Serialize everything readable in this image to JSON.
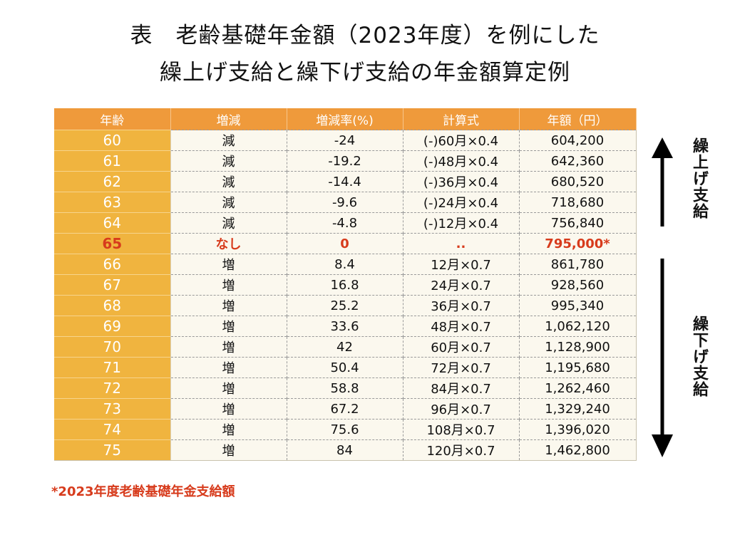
{
  "title": {
    "line1": "表　老齢基礎年金額（2023年度）を例にした",
    "line2": "繰上げ支給と繰下げ支給の年金額算定例"
  },
  "table": {
    "headers": [
      "年齢",
      "増減",
      "増減率(%)",
      "計算式",
      "年額（円）"
    ],
    "rows": [
      {
        "age": "60",
        "change": "減",
        "rate": "-24",
        "formula": "(-)60月×0.4",
        "amount": "604,200"
      },
      {
        "age": "61",
        "change": "減",
        "rate": "-19.2",
        "formula": "(-)48月×0.4",
        "amount": "642,360"
      },
      {
        "age": "62",
        "change": "減",
        "rate": "-14.4",
        "formula": "(-)36月×0.4",
        "amount": "680,520"
      },
      {
        "age": "63",
        "change": "減",
        "rate": "-9.6",
        "formula": "(-)24月×0.4",
        "amount": "718,680"
      },
      {
        "age": "64",
        "change": "減",
        "rate": "-4.8",
        "formula": "(-)12月×0.4",
        "amount": "756,840"
      },
      {
        "age": "65",
        "change": "なし",
        "rate": "0",
        "formula": "..",
        "amount": "795,000*"
      },
      {
        "age": "66",
        "change": "増",
        "rate": "8.4",
        "formula": "12月×0.7",
        "amount": "861,780"
      },
      {
        "age": "67",
        "change": "増",
        "rate": "16.8",
        "formula": "24月×0.7",
        "amount": "928,560"
      },
      {
        "age": "68",
        "change": "増",
        "rate": "25.2",
        "formula": "36月×0.7",
        "amount": "995,340"
      },
      {
        "age": "69",
        "change": "増",
        "rate": "33.6",
        "formula": "48月×0.7",
        "amount": "1,062,120"
      },
      {
        "age": "70",
        "change": "増",
        "rate": "42",
        "formula": "60月×0.7",
        "amount": "1,128,900"
      },
      {
        "age": "71",
        "change": "増",
        "rate": "50.4",
        "formula": "72月×0.7",
        "amount": "1,195,680"
      },
      {
        "age": "72",
        "change": "増",
        "rate": "58.8",
        "formula": "84月×0.7",
        "amount": "1,262,460"
      },
      {
        "age": "73",
        "change": "増",
        "rate": "67.2",
        "formula": "96月×0.7",
        "amount": "1,329,240"
      },
      {
        "age": "74",
        "change": "増",
        "rate": "75.6",
        "formula": "108月×0.7",
        "amount": "1,396,020"
      },
      {
        "age": "75",
        "change": "増",
        "rate": "84",
        "formula": "120月×0.7",
        "amount": "1,462,800"
      }
    ]
  },
  "side": {
    "early_label": "繰上げ支給",
    "late_label": "繰下げ支給",
    "arrow_up_icon": "arrow-up-icon",
    "arrow_down_icon": "arrow-down-icon"
  },
  "footnote": "*2023年度老齢基礎年金支給額",
  "colors": {
    "header_orange": "#ef9a3b",
    "age_column": "#f0b43f",
    "cell_background": "#fbf8ee",
    "highlight_red": "#d73b1c"
  }
}
